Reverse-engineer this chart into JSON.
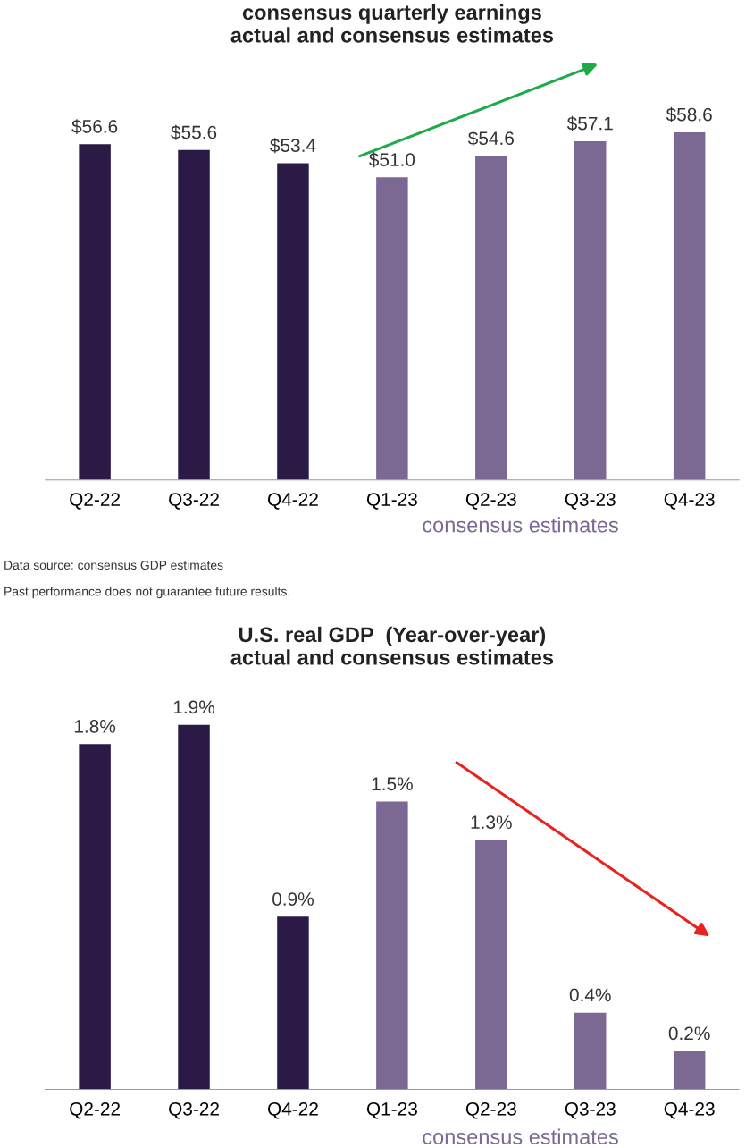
{
  "chart_data": [
    {
      "type": "bar",
      "title": "consensus quarterly earnings\nactual and consensus estimates",
      "categories": [
        "Q2-22",
        "Q3-22",
        "Q4-22",
        "Q1-23",
        "Q2-23",
        "Q3-23",
        "Q4-23"
      ],
      "values": [
        56.6,
        55.6,
        53.4,
        51.0,
        54.6,
        57.1,
        58.6
      ],
      "value_labels": [
        "$56.6",
        "$55.6",
        "$53.4",
        "$51.0",
        "$54.6",
        "$57.1",
        "$58.6"
      ],
      "colors": [
        "#2a1a45",
        "#2a1a45",
        "#2a1a45",
        "#7b6893",
        "#7b6893",
        "#7b6893",
        "#7b6893"
      ],
      "tick_labels": "x",
      "annotations": [
        "consensus estimates",
        "Data source: consensus GDP estimates",
        "Past performance does not guarantee future results."
      ]
    },
    {
      "type": "bar",
      "title": "U.S. real GDP  (Year-over-year)\nactual and consensus estimates",
      "categories": [
        "Q2-22",
        "Q3-22",
        "Q4-22",
        "Q1-23",
        "Q2-23",
        "Q3-23",
        "Q4-23"
      ],
      "values": [
        1.8,
        1.9,
        0.9,
        1.5,
        1.3,
        0.4,
        0.2
      ],
      "value_labels": [
        "1.8%",
        "1.9%",
        "0.9%",
        "1.5%",
        "1.3%",
        "0.4%",
        "0.2%"
      ],
      "colors": [
        "#2a1a45",
        "#2a1a45",
        "#2a1a45",
        "#7b6893",
        "#7b6893",
        "#7b6893",
        "#7b6893"
      ],
      "tick_labels": "x",
      "annotations": [
        "consensus estimates"
      ]
    }
  ]
}
